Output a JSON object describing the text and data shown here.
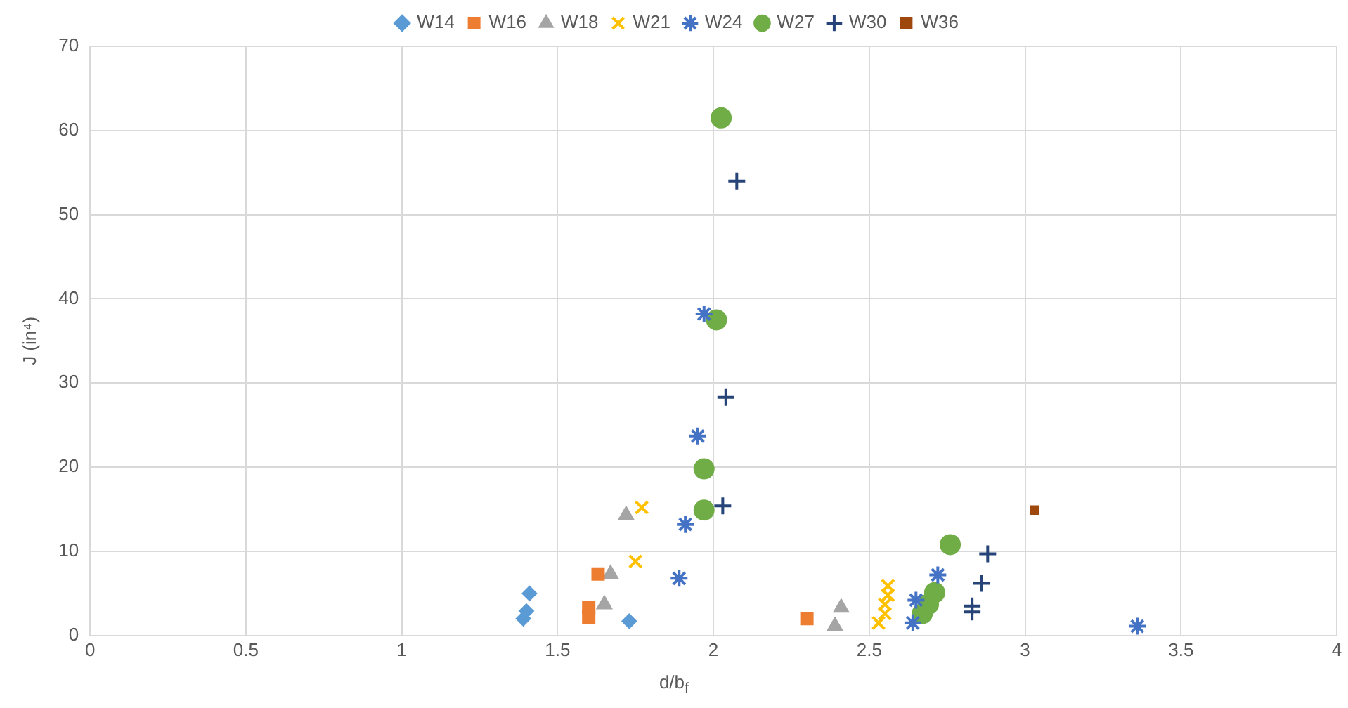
{
  "chart_data": {
    "type": "scatter",
    "xlabel": "d/b$_{f}$",
    "ylabel": "J (in⁴)",
    "xlim": [
      0,
      4
    ],
    "xticks": [
      0,
      0.5,
      1,
      1.5,
      2,
      2.5,
      3,
      3.5,
      4
    ],
    "ylim": [
      0,
      70
    ],
    "yticks": [
      0,
      10,
      20,
      30,
      40,
      50,
      60,
      70
    ],
    "grid": true,
    "legend": "top",
    "series": [
      {
        "name": "W14",
        "color": "#5b9bd5",
        "marker": "diamond",
        "x": [
          1.39,
          1.4,
          1.41,
          1.73
        ],
        "values": [
          2.0,
          2.9,
          5.0,
          1.7
        ]
      },
      {
        "name": "W16",
        "color": "#ed7d31",
        "marker": "square",
        "x": [
          1.6,
          1.6,
          1.63,
          2.3
        ],
        "values": [
          2.2,
          3.3,
          7.3,
          2.0
        ]
      },
      {
        "name": "W18",
        "color": "#a5a5a5",
        "marker": "triangle",
        "x": [
          1.65,
          1.67,
          1.72,
          2.39,
          2.41
        ],
        "values": [
          3.7,
          7.3,
          14.3,
          1.1,
          3.3
        ]
      },
      {
        "name": "W21",
        "color": "#ffc000",
        "marker": "cross",
        "x": [
          1.77,
          1.75,
          2.53,
          2.55,
          2.55,
          2.56,
          2.56
        ],
        "values": [
          15.2,
          8.8,
          1.5,
          2.6,
          3.7,
          4.8,
          5.9
        ]
      },
      {
        "name": "W24",
        "color": "#4472c4",
        "x": [
          1.89,
          1.91,
          1.95,
          1.97,
          2.64,
          2.65,
          2.72,
          3.36
        ],
        "values": [
          6.8,
          13.2,
          23.7,
          38.2,
          1.5,
          4.2,
          7.2,
          1.1
        ]
      },
      {
        "name": "W27",
        "color": "#70ad47",
        "marker": "circle",
        "x": [
          2.025,
          2.01,
          1.97,
          1.97,
          2.76,
          2.67,
          2.69,
          2.71
        ],
        "values": [
          61.5,
          37.5,
          19.8,
          14.9,
          10.8,
          2.6,
          3.7,
          5.1
        ]
      },
      {
        "name": "W30",
        "color": "#264478",
        "marker": "plus",
        "x": [
          2.075,
          2.04,
          2.03,
          2.88,
          2.86,
          2.83,
          2.83
        ],
        "values": [
          54.0,
          28.3,
          15.4,
          9.7,
          6.2,
          3.5,
          2.8
        ]
      },
      {
        "name": "W36",
        "color": "#9e480e",
        "marker": "square",
        "x": [
          3.03
        ],
        "values": [
          14.9
        ]
      }
    ]
  }
}
